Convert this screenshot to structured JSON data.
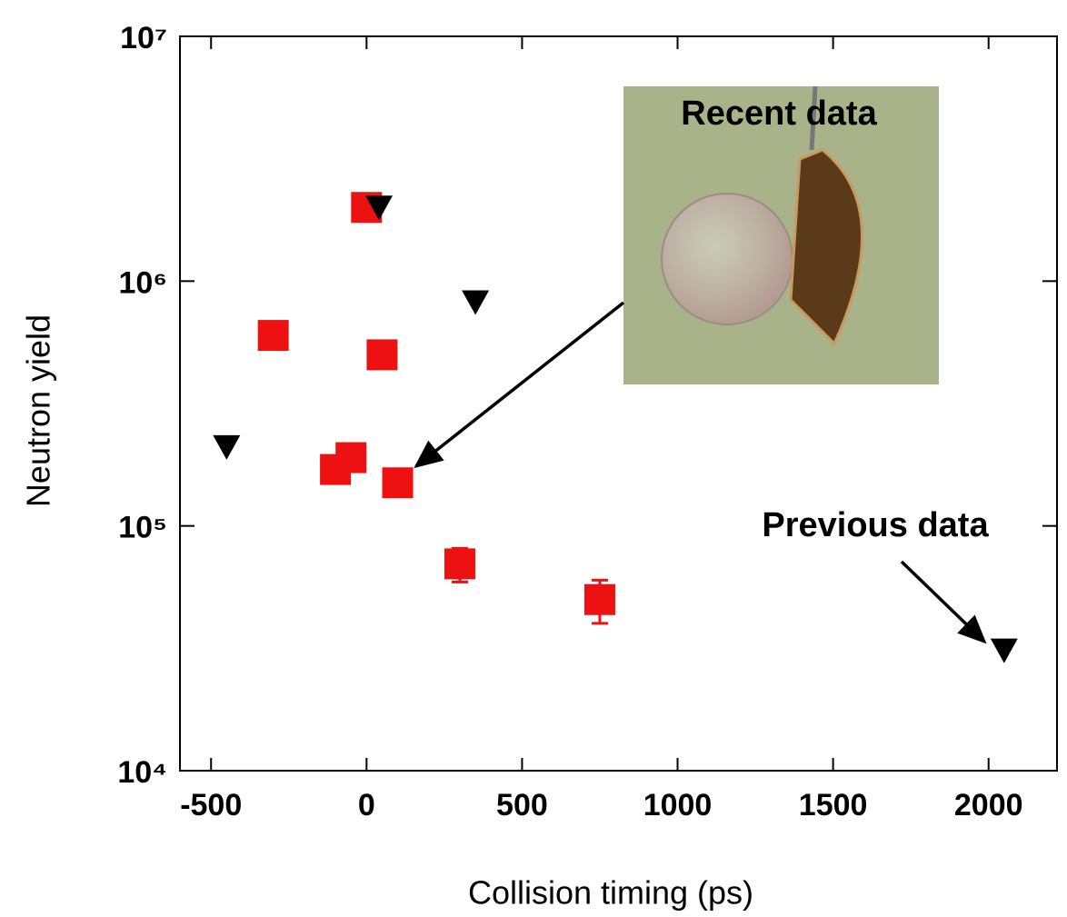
{
  "chart_data": {
    "type": "scatter",
    "x_label": "Collision timing (ps)",
    "y_label": "Neutron yield",
    "xlim": [
      -600,
      2220
    ],
    "xticks": [
      -500,
      0,
      500,
      1000,
      1500,
      2000
    ],
    "ylim": [
      10000,
      10000000
    ],
    "y_scale": "log",
    "yticks": [
      {
        "value": 10000,
        "label": "10⁴"
      },
      {
        "value": 100000,
        "label": "10⁵"
      },
      {
        "value": 1000000,
        "label": "10⁶"
      },
      {
        "value": 10000000,
        "label": "10⁷"
      }
    ],
    "series": [
      {
        "name": "Recent data",
        "color": "#ee1111",
        "marker": "square",
        "x": [
          -300,
          0,
          50,
          -100,
          -50,
          100,
          300,
          750
        ],
        "values": [
          600000,
          2000000,
          500000,
          170000,
          190000,
          150000,
          70000,
          50000
        ],
        "errors": [
          null,
          null,
          null,
          null,
          null,
          null,
          11000,
          10000
        ]
      },
      {
        "name": "Previous data",
        "color": "#000000",
        "marker": "triangle-down",
        "x": [
          -450,
          40,
          350,
          2050
        ],
        "values": [
          210000,
          2000000,
          820000,
          31000
        ]
      }
    ]
  }
}
